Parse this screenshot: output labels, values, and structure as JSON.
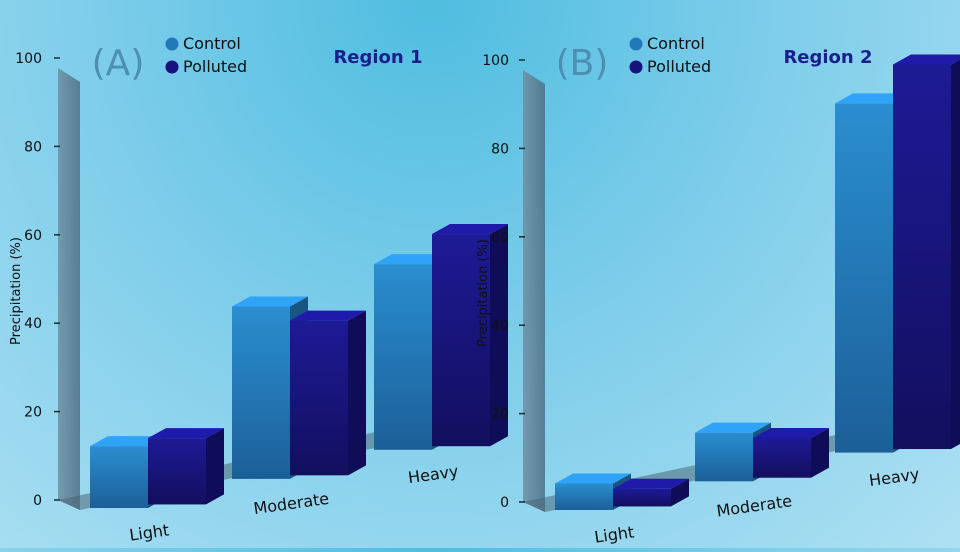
{
  "colors": {
    "control": "#2379b8",
    "polluted": "#17137e",
    "title": "#1a1f8c",
    "panel_letter": "#4d8fb3",
    "axis_wall": "#5f7f93",
    "text": "#111111"
  },
  "chart_data": [
    {
      "type": "bar",
      "panel_label": "(A)",
      "title": "Region 1",
      "ylabel": "Precipitation (%)",
      "xlabel": "",
      "ylim": [
        0,
        100
      ],
      "yticks": [
        "0",
        "20",
        "40",
        "60",
        "80",
        "100"
      ],
      "categories": [
        "Light",
        "Moderate",
        "Heavy"
      ],
      "legend": {
        "placement": "top-left"
      },
      "series": [
        {
          "name": "Control",
          "values": [
            14,
            39,
            42
          ]
        },
        {
          "name": "Polluted",
          "values": [
            15,
            35,
            48
          ]
        }
      ]
    },
    {
      "type": "bar",
      "panel_label": "(B)",
      "title": "Region 2",
      "ylabel": "Precipitation (%)",
      "xlabel": "",
      "ylim": [
        0,
        100
      ],
      "yticks": [
        "0",
        "20",
        "40",
        "60",
        "80",
        "100"
      ],
      "categories": [
        "Light",
        "Moderate",
        "Heavy"
      ],
      "legend": {
        "placement": "top-left"
      },
      "series": [
        {
          "name": "Control",
          "values": [
            6,
            11,
            79
          ]
        },
        {
          "name": "Polluted",
          "values": [
            4,
            9,
            87
          ]
        }
      ]
    }
  ]
}
